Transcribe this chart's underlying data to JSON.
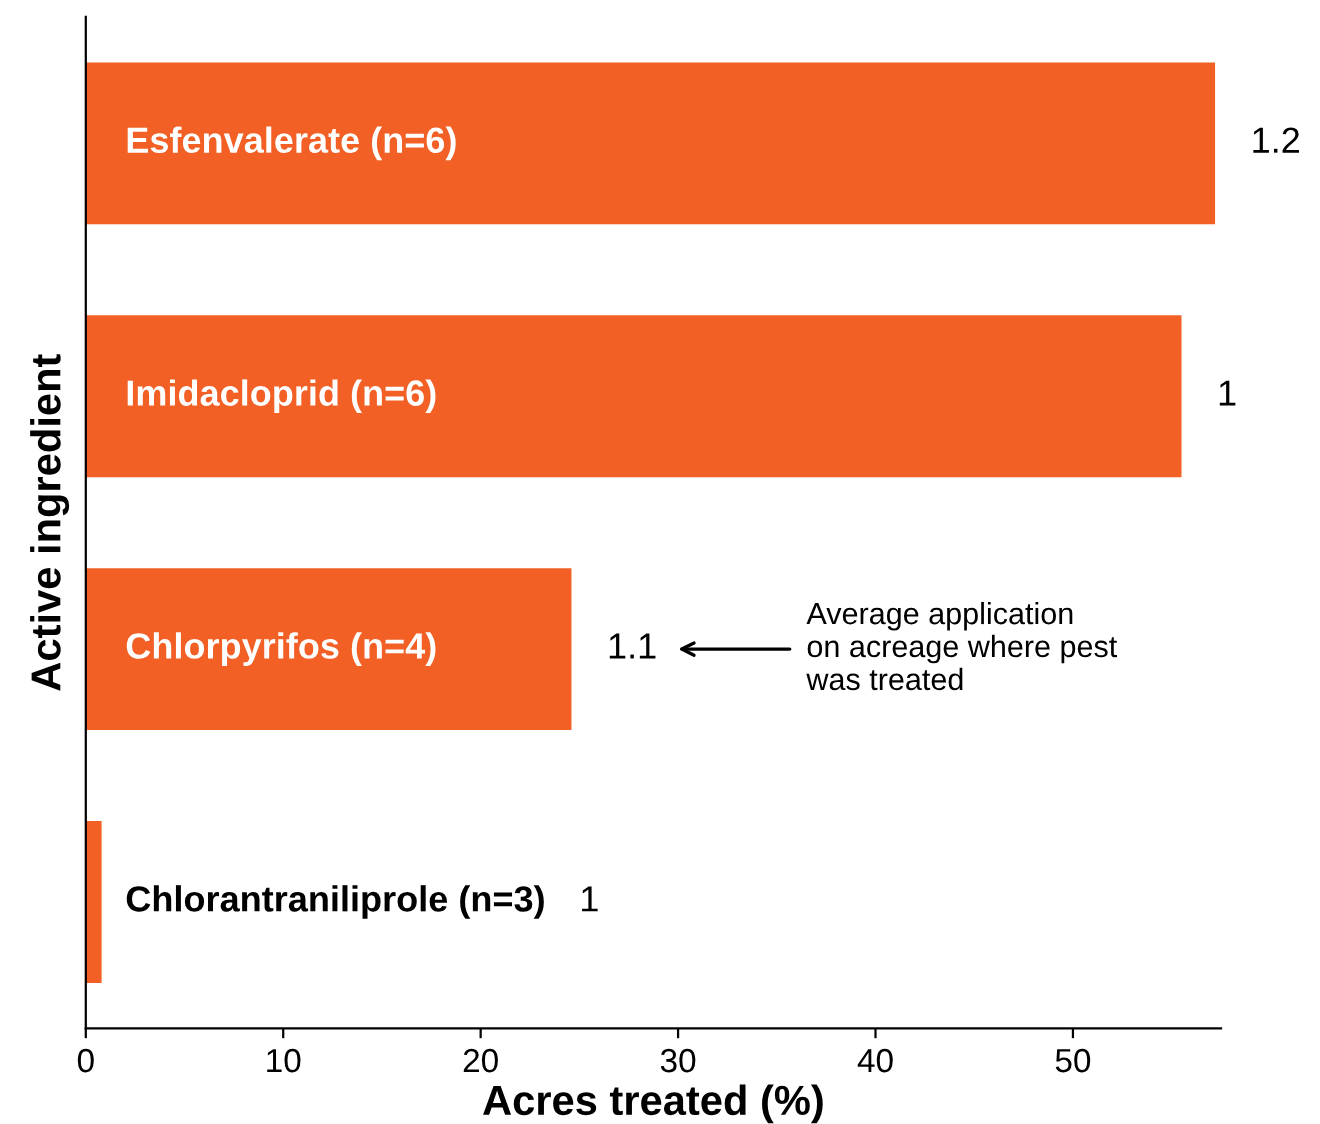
{
  "chart_data": {
    "type": "bar",
    "orientation": "horizontal",
    "xlabel": "Acres treated (%)",
    "ylabel": "Active ingredient",
    "categories": [
      "Esfenvalerate (n=6)",
      "Imidacloprid (n=6)",
      "Chlorpyrifos (n=4)",
      "Chlorantraniliprole (n=3)"
    ],
    "values": [
      57.2,
      55.5,
      24.6,
      0.8
    ],
    "color": "#f26025",
    "xlim": [
      0,
      57.5
    ],
    "xticks": [
      0,
      10,
      20,
      30,
      40,
      50
    ],
    "grid": false,
    "legend": false,
    "annotations": [
      "1.2",
      "1",
      "1.1",
      "1",
      "Average application\non acreage where pest\nwas treated"
    ]
  }
}
